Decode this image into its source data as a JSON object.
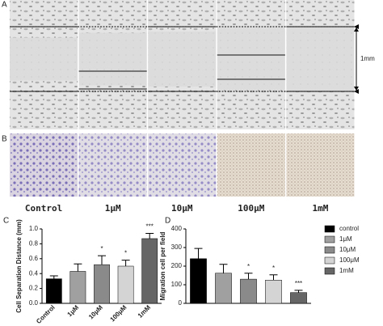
{
  "figure": {
    "panels": [
      "A",
      "B",
      "C",
      "D"
    ],
    "conditions": [
      "Control",
      "1μM",
      "10μM",
      "100μM",
      "1mM"
    ],
    "scale": "1mm"
  },
  "chart_data": [
    {
      "type": "bar",
      "ylabel": "Cell Separation Distance (mm)",
      "categories": [
        "Control",
        "1μM",
        "10μM",
        "100μM",
        "1mM"
      ],
      "values": [
        0.33,
        0.43,
        0.52,
        0.5,
        0.87
      ],
      "errors": [
        0.04,
        0.1,
        0.12,
        0.08,
        0.07
      ],
      "colors": [
        "#000000",
        "#a0a0a0",
        "#8a8a8a",
        "#d4d4d4",
        "#666666"
      ],
      "annotations": [
        null,
        null,
        "*",
        "*",
        "***"
      ],
      "ylim": [
        0,
        1.0
      ],
      "yticks": [
        {
          "value": 0,
          "label": "0.0"
        },
        {
          "value": 0.2,
          "label": "0.2"
        },
        {
          "value": 0.4,
          "label": "0.4"
        },
        {
          "value": 0.6,
          "label": "0.6"
        },
        {
          "value": 0.8,
          "label": "0.8"
        },
        {
          "value": 1.0,
          "label": "1.0"
        }
      ]
    },
    {
      "type": "bar",
      "ylabel": "Migration cell per field",
      "categories": [
        "control",
        "1μM",
        "10μM",
        "100μM",
        "1mM"
      ],
      "values": [
        240,
        162,
        130,
        125,
        58
      ],
      "errors": [
        55,
        48,
        32,
        28,
        12
      ],
      "colors": [
        "#000000",
        "#a0a0a0",
        "#8a8a8a",
        "#d4d4d4",
        "#666666"
      ],
      "annotations": [
        null,
        null,
        "*",
        "*",
        "***"
      ],
      "ylim": [
        0,
        400
      ],
      "yticks": [
        0,
        100,
        200,
        300,
        400
      ],
      "legend": "right"
    }
  ]
}
